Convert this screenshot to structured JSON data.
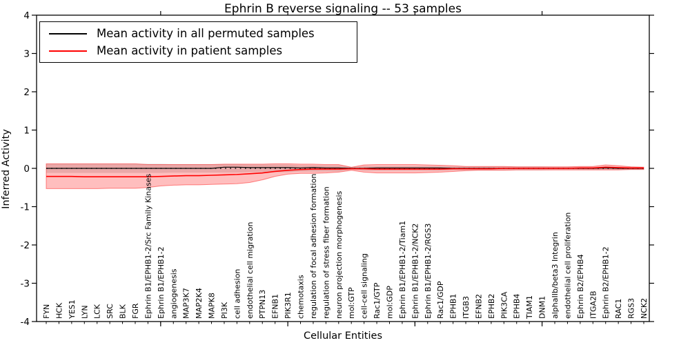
{
  "chart_data": {
    "type": "line",
    "title": "Ephrin B reverse signaling -- 53 samples",
    "xlabel": "Cellular Entities",
    "ylabel": "Inferred Activity",
    "ylim": [
      -4,
      4
    ],
    "yticks": [
      -4,
      -3,
      -2,
      -1,
      0,
      1,
      2,
      3,
      4
    ],
    "grid": false,
    "legend_position": "upper left",
    "zero_line_style": "dotted",
    "colors": {
      "permuted_line": "#000000",
      "patient_line": "#ff0000",
      "patient_band_fill": "rgba(255,40,40,0.30)",
      "patient_band_edge": "rgba(255,0,0,0.45)",
      "permuted_band_fill": "rgba(130,130,130,0.25)",
      "axis": "#000000"
    },
    "categories": [
      "FYN",
      "HCK",
      "YES1",
      "LYN",
      "LCK",
      "SRC",
      "BLK",
      "FGR",
      "Ephrin B1/EPHB1-2/Src Family Kinases",
      "Ephrin B1/EPHB1-2",
      "angiogenesis",
      "MAP3K7",
      "MAP2K4",
      "MAPK8",
      "PI3K",
      "cell adhesion",
      "endothelial cell migration",
      "PTPN13",
      "EFNB1",
      "PIK3R1",
      "chemotaxis",
      "regulation of focal adhesion formation",
      "regulation of stress fiber formation",
      "neuron projection morphogenesis",
      "mol:GTP",
      "cell-cell signaling",
      "Rac1/GTP",
      "mol:GDP",
      "Ephrin B1/EPHB1-2/Tiam1",
      "Ephrin B1/EPHB1-2/NCK2",
      "Ephrin B1/EPHB1-2/RGS3",
      "Rac1/GDP",
      "EPHB1",
      "ITGB3",
      "EFNB2",
      "EPHB2",
      "PIK3CA",
      "EPHB4",
      "TIAM1",
      "DNM1",
      "alphaIIb/beta3 Integrin",
      "endothelial cell proliferation",
      "Ephrin B2/EPHB4",
      "ITGA2B",
      "Ephrin B2/EPHB1-2",
      "RAC1",
      "RGS3",
      "NCK2"
    ],
    "series": [
      {
        "name": "Mean activity in all permuted samples",
        "color": "#000000",
        "values": [
          0,
          0,
          0,
          0,
          0,
          0,
          0,
          0,
          0,
          0,
          0,
          0,
          0,
          0,
          0.03,
          0.03,
          0.02,
          0.02,
          0.02,
          0.02,
          0.01,
          0.02,
          0.01,
          0.01,
          0,
          0,
          0.01,
          0.01,
          0.01,
          0.01,
          0.01,
          0.01,
          0,
          0,
          0,
          0,
          0,
          0,
          0,
          0,
          0,
          0,
          0,
          0,
          0.01,
          0,
          0,
          0
        ]
      },
      {
        "name": "Mean activity in patient samples",
        "color": "#ff0000",
        "values": [
          -0.21,
          -0.21,
          -0.21,
          -0.22,
          -0.22,
          -0.22,
          -0.22,
          -0.22,
          -0.22,
          -0.21,
          -0.2,
          -0.19,
          -0.19,
          -0.18,
          -0.17,
          -0.16,
          -0.14,
          -0.12,
          -0.08,
          -0.05,
          -0.03,
          -0.02,
          -0.02,
          -0.02,
          -0.01,
          -0.01,
          -0.02,
          -0.02,
          -0.02,
          -0.02,
          -0.02,
          -0.02,
          -0.01,
          -0.01,
          -0.01,
          -0.01,
          0,
          0,
          0,
          0,
          0,
          0,
          0.01,
          0.01,
          0.03,
          0.02,
          0.01,
          0.01
        ]
      }
    ],
    "bands": [
      {
        "name": "permuted-samples-std-band",
        "upper": [
          0.12,
          0.12,
          0.12,
          0.12,
          0.12,
          0.12,
          0.12,
          0.12,
          0.12,
          0.12,
          0.11,
          0.11,
          0.11,
          0.11,
          0.11,
          0.11,
          0.1,
          0.1,
          0.1,
          0.1,
          0.08,
          0.08,
          0.08,
          0.08,
          0.03,
          0.06,
          0.06,
          0.06,
          0.06,
          0.06,
          0.06,
          0.06,
          0.05,
          0.05,
          0.05,
          0.05,
          0.05,
          0.05,
          0.05,
          0.05,
          0.04,
          0.04,
          0.04,
          0.04,
          0.04,
          0.04,
          0.04,
          0.04
        ],
        "lower": [
          -0.12,
          -0.12,
          -0.12,
          -0.12,
          -0.12,
          -0.12,
          -0.12,
          -0.12,
          -0.12,
          -0.12,
          -0.11,
          -0.11,
          -0.11,
          -0.11,
          -0.11,
          -0.11,
          -0.1,
          -0.1,
          -0.1,
          -0.1,
          -0.08,
          -0.08,
          -0.08,
          -0.08,
          -0.03,
          -0.06,
          -0.06,
          -0.06,
          -0.06,
          -0.06,
          -0.06,
          -0.06,
          -0.05,
          -0.05,
          -0.05,
          -0.05,
          -0.05,
          -0.05,
          -0.05,
          -0.05,
          -0.04,
          -0.04,
          -0.04,
          -0.04,
          -0.04,
          -0.04,
          -0.04,
          -0.04
        ]
      },
      {
        "name": "patient-samples-std-band",
        "upper": [
          0.12,
          0.12,
          0.12,
          0.12,
          0.12,
          0.12,
          0.12,
          0.12,
          0.1,
          0.1,
          0.1,
          0.1,
          0.1,
          0.1,
          0.11,
          0.11,
          0.11,
          0.11,
          0.12,
          0.12,
          0.11,
          0.11,
          0.1,
          0.1,
          0.03,
          0.09,
          0.1,
          0.1,
          0.1,
          0.1,
          0.09,
          0.08,
          0.07,
          0.05,
          0.05,
          0.05,
          0.05,
          0.04,
          0.04,
          0.04,
          0.04,
          0.04,
          0.05,
          0.05,
          0.09,
          0.07,
          0.04,
          0.03
        ],
        "lower": [
          -0.53,
          -0.53,
          -0.53,
          -0.53,
          -0.53,
          -0.52,
          -0.52,
          -0.52,
          -0.5,
          -0.46,
          -0.44,
          -0.43,
          -0.43,
          -0.42,
          -0.41,
          -0.4,
          -0.37,
          -0.3,
          -0.21,
          -0.15,
          -0.13,
          -0.13,
          -0.12,
          -0.1,
          -0.05,
          -0.1,
          -0.12,
          -0.12,
          -0.12,
          -0.12,
          -0.11,
          -0.1,
          -0.08,
          -0.06,
          -0.05,
          -0.05,
          -0.05,
          -0.04,
          -0.04,
          -0.04,
          -0.04,
          -0.04,
          -0.04,
          -0.04,
          -0.04,
          -0.04,
          -0.03,
          -0.03
        ]
      }
    ]
  }
}
